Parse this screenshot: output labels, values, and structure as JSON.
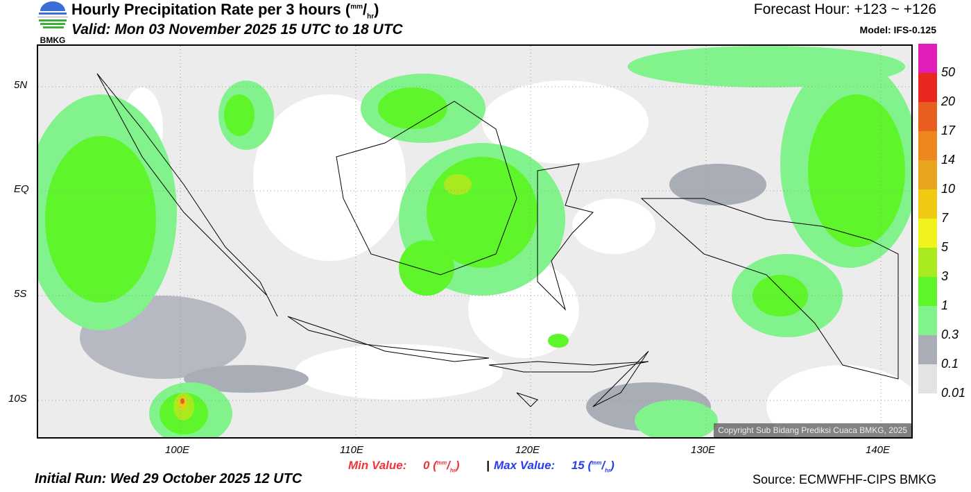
{
  "header": {
    "title": "Hourly Precipitation Rate per 3 hours (",
    "unit_num": "mm",
    "unit_den": "hr",
    "unit_close": ")",
    "valid": "Valid: Mon 03 November 2025 15 UTC to 18 UTC",
    "forecast_hour": "Forecast Hour: +123 ~ +126",
    "model": "Model: IFS-0.125"
  },
  "logo": {
    "text": "BMKG"
  },
  "map": {
    "lat_labels": [
      "5N",
      "EQ",
      "5S",
      "10S"
    ],
    "lon_labels": [
      "100E",
      "110E",
      "120E",
      "130E",
      "140E"
    ],
    "copyright": "Copyright Sub Bidang Prediksi Cuaca BMKG, 2025"
  },
  "colorbar": {
    "levels": [
      "50",
      "20",
      "17",
      "14",
      "10",
      "7",
      "5",
      "3",
      "1",
      "0.3",
      "0.1",
      "0.01"
    ],
    "colors": [
      "#e21eb8",
      "#e8281e",
      "#e85e1e",
      "#ee861e",
      "#e9a41e",
      "#efca12",
      "#f2f21c",
      "#a8ea1e",
      "#5ef52a",
      "#82f28c",
      "#a9adb6",
      "#e3e3e3"
    ]
  },
  "footer": {
    "min_label": "Min Value:",
    "min_value": "0 (",
    "max_label": "Max Value:",
    "max_value": "15 (",
    "unit_num": "mm",
    "unit_den": "hr",
    "close": ")",
    "separator": "|",
    "initial_run": "Initial Run: Wed 29 October 2025 12 UTC",
    "source": "Source: ECMWFHF-CIPS BMKG"
  }
}
